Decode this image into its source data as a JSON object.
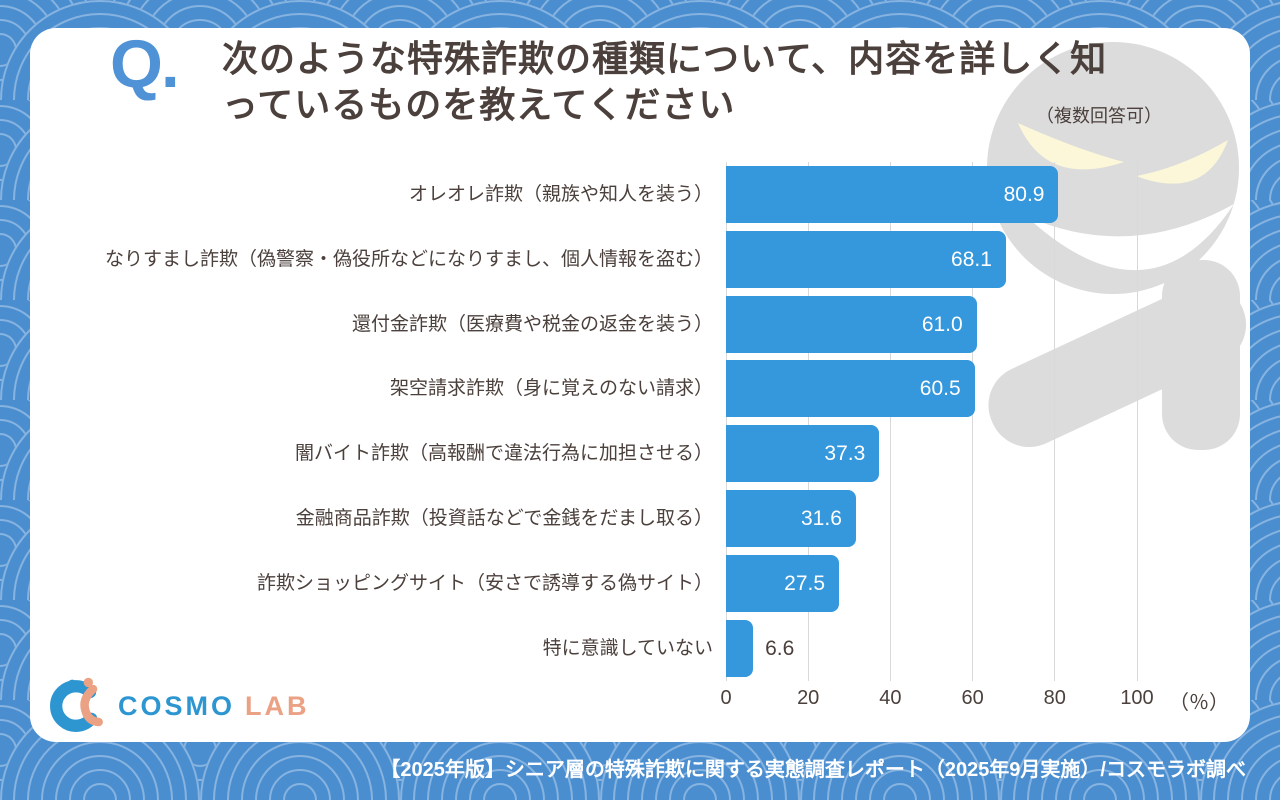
{
  "question": {
    "prefix": "Q.",
    "title_lines": [
      "次のような特殊詐欺の種類について、内容を詳しく知",
      "っているものを教えてください"
    ],
    "note": "（複数回答可）"
  },
  "chart_data": {
    "type": "bar",
    "orientation": "horizontal",
    "categories": [
      "オレオレ詐欺（親族や知人を装う）",
      "なりすまし詐欺（偽警察・偽役所などになりすまし、個人情報を盗む）",
      "還付金詐欺（医療費や税金の返金を装う）",
      "架空請求詐欺（身に覚えのない請求）",
      "闇バイト詐欺（高報酬で違法行為に加担させる）",
      "金融商品詐欺（投資話などで金銭をだまし取る）",
      "詐欺ショッピングサイト（安さで誘導する偽サイト）",
      "特に意識していない"
    ],
    "values": [
      80.9,
      68.1,
      61.0,
      60.5,
      37.3,
      31.6,
      27.5,
      6.6
    ],
    "value_labels": [
      "80.9",
      "68.1",
      "61.0",
      "60.5",
      "37.3",
      "31.6",
      "27.5",
      "6.6"
    ],
    "xlim": [
      0,
      100
    ],
    "x_ticks": [
      0,
      20,
      40,
      60,
      80,
      100
    ],
    "x_unit_label": "（％）",
    "grid": "vertical",
    "legend": "none",
    "title": "次のような特殊詐欺の種類について、内容を詳しく知っているものを教えてください"
  },
  "mascot_icon": "grinning-ghost",
  "logo": {
    "mark_icon": "cosmo-lab-mark",
    "text_primary": "COSMO",
    "text_secondary": "LAB"
  },
  "footer": {
    "text": "【2025年版】シニア層の特殊詐欺に関する実態調査レポート（2025年9月実施）/コスモラボ調べ"
  },
  "colors": {
    "background_blue": "#4a8ed0",
    "pattern_line": "#86b3e0",
    "bar_blue": "#3597dc",
    "title_text": "#4b403c",
    "q_accent": "#4f93d6",
    "ghost_gray": "#dcdcdc",
    "ghost_eye": "#fbf7d8",
    "gridline": "#d9d9d9",
    "logo_blue": "#2d96d1",
    "logo_salmon": "#eba184",
    "footer_text": "#ffffff"
  }
}
